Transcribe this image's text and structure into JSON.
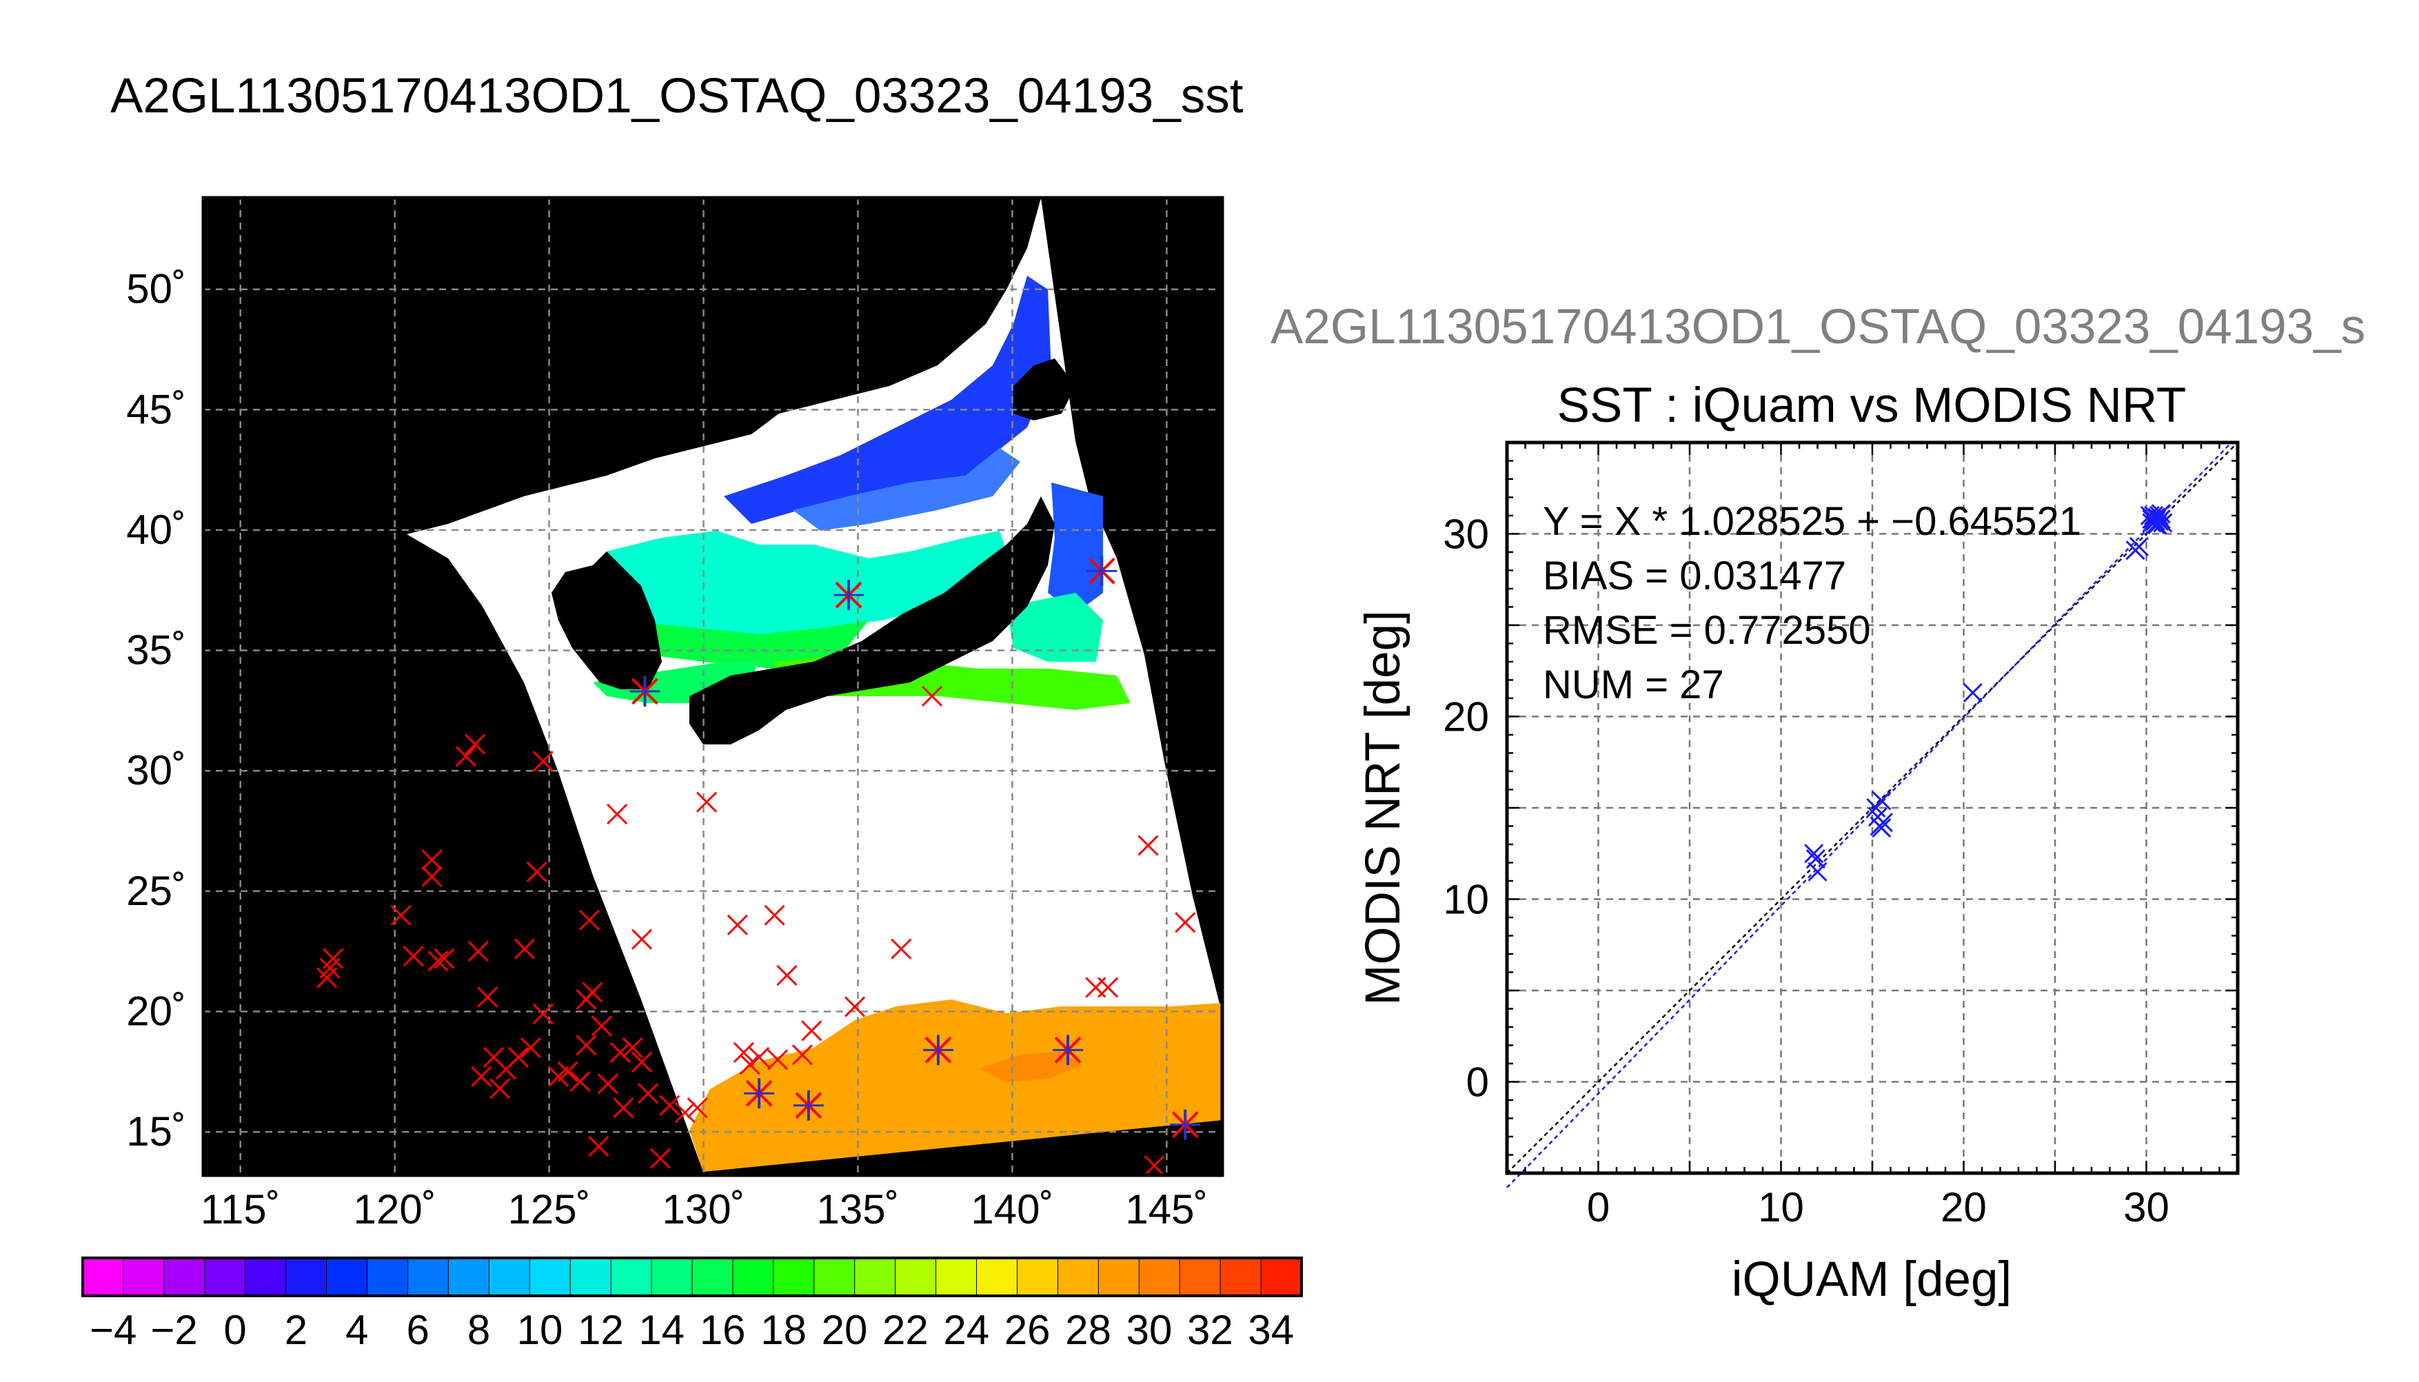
{
  "figure_title": "A2GL11305170413OD1_OSTAQ_03323_04193_sst",
  "map": {
    "lon_ticks": [
      "115˚",
      "120˚",
      "125˚",
      "130˚",
      "135˚",
      "140˚",
      "145˚"
    ],
    "lat_ticks": [
      "15˚",
      "20˚",
      "25˚",
      "30˚",
      "35˚",
      "40˚",
      "45˚",
      "50˚"
    ],
    "lon_values": [
      115,
      120,
      125,
      130,
      135,
      140,
      145
    ],
    "lat_values": [
      15,
      20,
      25,
      30,
      35,
      40,
      45,
      50
    ],
    "lon_range": [
      113.8,
      146.8
    ],
    "lat_range": [
      13.2,
      53.8
    ],
    "colors": {
      "background": "#000000",
      "cloud": "#ffffff",
      "marker_red": "#ff0000",
      "marker_blue": "#3030c0"
    }
  },
  "colorbar": {
    "tick_labels": [
      "−4",
      "−2",
      "0",
      "2",
      "4",
      "6",
      "8",
      "10",
      "12",
      "14",
      "16",
      "18",
      "20",
      "22",
      "24",
      "26",
      "28",
      "30",
      "32",
      "34"
    ],
    "range": [
      -5,
      35
    ],
    "colors": [
      "#ff00ff",
      "#d900ff",
      "#a800ff",
      "#7a00ff",
      "#4a00ff",
      "#1a1aff",
      "#0030ff",
      "#0055ff",
      "#0078ff",
      "#0099ff",
      "#00bbff",
      "#00d8ff",
      "#00f0e0",
      "#00ffb0",
      "#00ff80",
      "#00ff50",
      "#00ff20",
      "#20ff00",
      "#55ff00",
      "#88ff00",
      "#b0ff00",
      "#d8ff00",
      "#f8f000",
      "#ffd000",
      "#ffb000",
      "#ff9a00",
      "#ff8000",
      "#ff6000",
      "#ff4000",
      "#ff2000"
    ]
  },
  "scatter_header": "A2GL11305170413OD1_OSTAQ_03323_04193_s",
  "chart_data": {
    "type": "scatter",
    "title": "SST : iQuam vs MODIS NRT",
    "xlabel": "iQUAM [deg]",
    "ylabel": "MODIS NRT [deg]",
    "xlim": [
      -5,
      35
    ],
    "ylim": [
      -5,
      35
    ],
    "x_ticks": [
      0,
      10,
      20,
      30
    ],
    "y_ticks": [
      0,
      10,
      20,
      30
    ],
    "x_tick_labels": [
      "0",
      "10",
      "20",
      "30"
    ],
    "y_tick_labels": [
      "0",
      "10",
      "20",
      "30"
    ],
    "grid": true,
    "annotations": [
      "Y = X * 1.028525 + −0.645521",
      "BIAS = 0.031477",
      "RMSE = 0.772550",
      "NUM = 27"
    ],
    "fit": {
      "slope": 1.028525,
      "intercept": -0.645521
    },
    "points": [
      {
        "x": 11.8,
        "y": 12.5
      },
      {
        "x": 11.9,
        "y": 12.2
      },
      {
        "x": 12.0,
        "y": 11.5
      },
      {
        "x": 15.3,
        "y": 14.5
      },
      {
        "x": 15.4,
        "y": 14.0
      },
      {
        "x": 15.5,
        "y": 15.4
      },
      {
        "x": 15.6,
        "y": 14.2
      },
      {
        "x": 15.5,
        "y": 13.9
      },
      {
        "x": 15.2,
        "y": 15.0
      },
      {
        "x": 20.5,
        "y": 21.3
      },
      {
        "x": 29.4,
        "y": 29.1
      },
      {
        "x": 29.6,
        "y": 29.3
      },
      {
        "x": 30.2,
        "y": 31.0
      },
      {
        "x": 30.4,
        "y": 30.8
      },
      {
        "x": 30.5,
        "y": 30.5
      },
      {
        "x": 30.6,
        "y": 30.9
      },
      {
        "x": 30.8,
        "y": 31.1
      },
      {
        "x": 30.3,
        "y": 30.6
      },
      {
        "x": 30.7,
        "y": 30.7
      },
      {
        "x": 30.4,
        "y": 31.0
      },
      {
        "x": 30.9,
        "y": 30.6
      },
      {
        "x": 30.5,
        "y": 30.9
      },
      {
        "x": 30.6,
        "y": 30.5
      },
      {
        "x": 30.3,
        "y": 30.8
      },
      {
        "x": 30.7,
        "y": 31.0
      },
      {
        "x": 30.5,
        "y": 30.7
      },
      {
        "x": 30.8,
        "y": 30.8
      }
    ]
  },
  "map_markers": {
    "red": [
      [
        117.9,
        21.8
      ],
      [
        118.0,
        22.2
      ],
      [
        117.8,
        21.4
      ],
      [
        120.2,
        24.0
      ],
      [
        120.6,
        22.3
      ],
      [
        121.2,
        25.6
      ],
      [
        121.2,
        26.3
      ],
      [
        121.4,
        22.1
      ],
      [
        121.6,
        22.2
      ],
      [
        122.3,
        30.6
      ],
      [
        122.6,
        31.1
      ],
      [
        122.7,
        22.5
      ],
      [
        122.8,
        17.3
      ],
      [
        123.0,
        20.6
      ],
      [
        123.2,
        18.1
      ],
      [
        123.4,
        16.8
      ],
      [
        123.6,
        17.6
      ],
      [
        124.0,
        18.1
      ],
      [
        124.2,
        22.6
      ],
      [
        124.4,
        18.5
      ],
      [
        124.6,
        25.8
      ],
      [
        124.8,
        19.9
      ],
      [
        124.8,
        30.4
      ],
      [
        125.3,
        17.3
      ],
      [
        125.6,
        17.5
      ],
      [
        126.0,
        17.1
      ],
      [
        126.2,
        18.6
      ],
      [
        126.2,
        20.5
      ],
      [
        126.4,
        20.8
      ],
      [
        126.3,
        23.8
      ],
      [
        126.6,
        14.4
      ],
      [
        126.7,
        19.4
      ],
      [
        126.9,
        17.0
      ],
      [
        127.2,
        28.2
      ],
      [
        127.3,
        18.3
      ],
      [
        127.4,
        16.0
      ],
      [
        127.7,
        18.5
      ],
      [
        128.0,
        23.0
      ],
      [
        128.0,
        17.9
      ],
      [
        128.2,
        16.6
      ],
      [
        128.6,
        13.9
      ],
      [
        128.9,
        16.1
      ],
      [
        129.4,
        15.8
      ],
      [
        129.8,
        16.0
      ],
      [
        130.1,
        28.7
      ],
      [
        131.1,
        23.6
      ],
      [
        131.3,
        18.3
      ],
      [
        131.5,
        17.8
      ],
      [
        131.8,
        18.1
      ],
      [
        132.3,
        24.0
      ],
      [
        132.4,
        18.0
      ],
      [
        132.7,
        21.5
      ],
      [
        133.2,
        18.2
      ],
      [
        133.5,
        19.2
      ],
      [
        134.9,
        20.2
      ],
      [
        136.4,
        22.6
      ],
      [
        137.4,
        33.1
      ],
      [
        142.7,
        21.0
      ],
      [
        143.1,
        21.0
      ],
      [
        144.4,
        26.9
      ],
      [
        145.6,
        23.7
      ],
      [
        144.6,
        13.6
      ]
    ],
    "star": [
      [
        128.1,
        33.3
      ],
      [
        134.7,
        37.3
      ],
      [
        131.8,
        16.6
      ],
      [
        133.4,
        16.1
      ],
      [
        137.6,
        18.4
      ],
      [
        141.8,
        18.4
      ],
      [
        142.9,
        38.3
      ],
      [
        145.6,
        15.3
      ]
    ]
  }
}
